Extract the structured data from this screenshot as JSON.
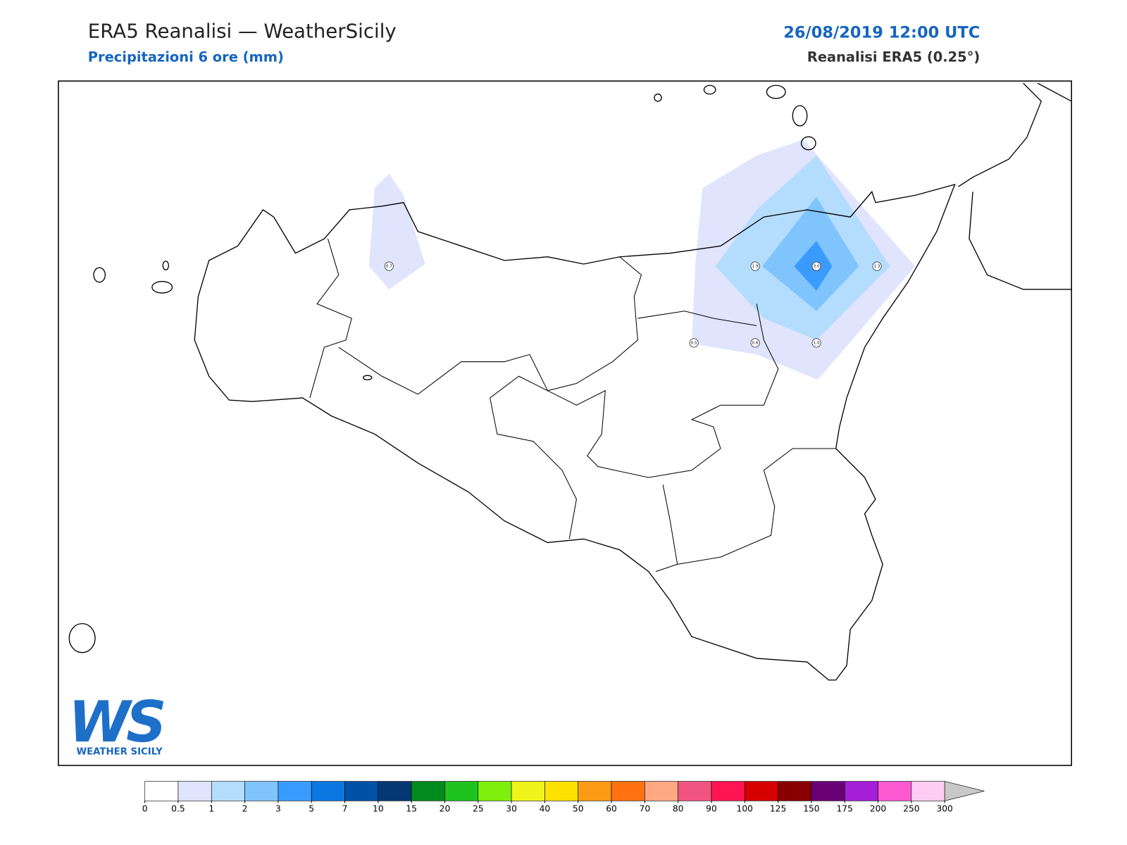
{
  "header": {
    "title": "ERA5 Reanalisi — WeatherSicily",
    "subtitle": "Precipitazioni 6 ore (mm)",
    "datetime": "26/08/2019 12:00 UTC",
    "source": "Reanalisi ERA5 (0.25°)"
  },
  "stations": [
    {
      "label": "0.7"
    },
    {
      "label": "1.9"
    },
    {
      "label": "3.0"
    },
    {
      "label": "1.3"
    },
    {
      "label": "0.5"
    },
    {
      "label": "0.6"
    },
    {
      "label": "1.0"
    }
  ],
  "colorbar": {
    "ticks": [
      0,
      0.5,
      1,
      2,
      3,
      5,
      7,
      10,
      15,
      20,
      25,
      30,
      40,
      50,
      60,
      70,
      80,
      90,
      100,
      125,
      150,
      175,
      200,
      250,
      300
    ],
    "colors": [
      "#ffffff",
      "#e0e4fc",
      "#b4dcfd",
      "#80c4fe",
      "#3a9bfe",
      "#0a78e0",
      "#0052a6",
      "#033873",
      "#028b1c",
      "#1ec31e",
      "#7fef0c",
      "#f1f41b",
      "#fde100",
      "#fe9b16",
      "#ff7214",
      "#ffa883",
      "#f05582",
      "#ff1553",
      "#d70000",
      "#8a0000",
      "#6a0075",
      "#a31fd8",
      "#ff59d2",
      "#ffcdf4"
    ],
    "extend_color": "#c8c8c8"
  },
  "logo": {
    "initials": "WS",
    "name": "WEATHER SICILY"
  }
}
